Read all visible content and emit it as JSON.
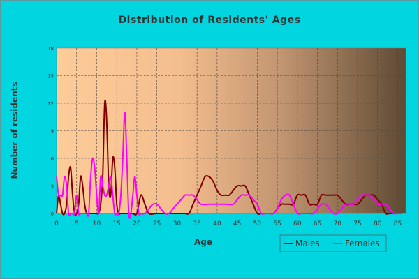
{
  "chart_data": {
    "type": "line",
    "title": "Distribution of Residents' Ages",
    "xlabel": "Age",
    "ylabel": "Number of residents",
    "xlim": [
      0,
      87
    ],
    "ylim": [
      0,
      18
    ],
    "x_ticks": [
      "0",
      "5",
      "10",
      "15",
      "20",
      "25",
      "30",
      "35",
      "40",
      "45",
      "50",
      "55",
      "60",
      "65",
      "70",
      "75",
      "80",
      "85"
    ],
    "y_ticks": [
      "0",
      "3",
      "6",
      "9",
      "12",
      "15",
      "18"
    ],
    "grid": true,
    "legend": "bottom-right",
    "series": [
      {
        "name": "Males",
        "color": "#800000",
        "x": [
          0,
          0.5,
          1,
          1.5,
          2,
          2.5,
          3,
          3.5,
          4,
          4.5,
          5,
          5.5,
          6,
          6.5,
          7,
          7.5,
          8,
          8.5,
          9,
          9.5,
          10,
          10.5,
          11,
          11.5,
          12,
          12.5,
          13,
          13.5,
          14,
          14.5,
          15,
          15.5,
          16,
          17,
          18,
          19,
          20,
          21,
          22,
          23,
          25,
          28,
          30,
          32,
          33,
          34,
          35,
          36,
          37,
          38,
          39,
          40,
          41,
          42,
          43,
          44,
          45,
          46,
          47,
          48,
          49,
          50,
          51,
          52,
          53,
          54,
          55,
          56,
          57,
          58,
          59,
          60,
          61,
          62,
          63,
          64,
          65,
          66,
          67,
          68,
          69,
          70,
          71,
          72,
          73,
          74,
          75,
          76,
          77,
          78,
          79,
          80,
          81,
          82,
          83,
          84,
          85,
          86
        ],
        "values": [
          0,
          2,
          1,
          0,
          0,
          1,
          4,
          5,
          2,
          0,
          0,
          1,
          4,
          3,
          1,
          0,
          0,
          0,
          0,
          0,
          0,
          0,
          1,
          4,
          12,
          10,
          3,
          2,
          6,
          5,
          1,
          0,
          0,
          0,
          0,
          0,
          0,
          2,
          1,
          0,
          0,
          0,
          0,
          0,
          0,
          1,
          2,
          3,
          4,
          4,
          3.5,
          2.5,
          2,
          2,
          2,
          2.5,
          3,
          3,
          3,
          2,
          1,
          0,
          0,
          0,
          0,
          0,
          0.5,
          1,
          1,
          1,
          1,
          2,
          2,
          2,
          1,
          1,
          1,
          2,
          2,
          2,
          2,
          2,
          1.5,
          1,
          1,
          1,
          1,
          1.5,
          2,
          2,
          2,
          1.5,
          1,
          0,
          0,
          0,
          0,
          0
        ]
      },
      {
        "name": "Females",
        "color": "#ff00ff",
        "x": [
          0,
          0.5,
          1,
          1.5,
          2,
          2.5,
          3,
          3.5,
          4,
          4.5,
          5,
          5.5,
          6,
          6.5,
          7,
          7.5,
          8,
          8.5,
          9,
          9.5,
          10,
          10.5,
          11,
          11.5,
          12,
          12.5,
          13,
          13.5,
          14,
          14.5,
          15,
          15.5,
          16,
          16.5,
          17,
          17.5,
          18,
          18.5,
          19,
          19.5,
          20,
          20.5,
          21,
          22,
          23,
          24,
          25,
          26,
          27,
          28,
          29,
          30,
          31,
          32,
          33,
          34,
          35,
          36,
          38,
          40,
          42,
          44,
          45,
          46,
          47,
          48,
          49,
          50,
          51,
          52,
          53,
          54,
          55,
          56,
          57,
          58,
          59,
          60,
          61,
          62,
          63,
          64,
          65,
          66,
          67,
          68,
          69,
          70,
          71,
          72,
          73,
          74,
          75,
          76,
          77,
          78,
          79,
          80,
          81,
          82,
          83,
          84,
          85,
          86
        ],
        "values": [
          4,
          2,
          2,
          2,
          4,
          3,
          0,
          0,
          0,
          0,
          2,
          0,
          0,
          0,
          0,
          0,
          0,
          4,
          6,
          5,
          2,
          0,
          4,
          3,
          2,
          2,
          3,
          4,
          2,
          0,
          0,
          0,
          2,
          6,
          11,
          6,
          0,
          0,
          2,
          4,
          2,
          0,
          0,
          0,
          0.5,
          1,
          1,
          0.5,
          0,
          0,
          0.5,
          1,
          1.5,
          2,
          2,
          2,
          1.5,
          1,
          1,
          1,
          1,
          1,
          1.5,
          2,
          2,
          2,
          1.5,
          1,
          0,
          0,
          0,
          0,
          0.5,
          1.5,
          2,
          2,
          1,
          0,
          0,
          0,
          0,
          0,
          0.5,
          1,
          1,
          0.5,
          0,
          0,
          0.5,
          1,
          1,
          1,
          1.5,
          2,
          2,
          2,
          1.5,
          1,
          1,
          1,
          0.5,
          0,
          0,
          0
        ]
      }
    ]
  }
}
